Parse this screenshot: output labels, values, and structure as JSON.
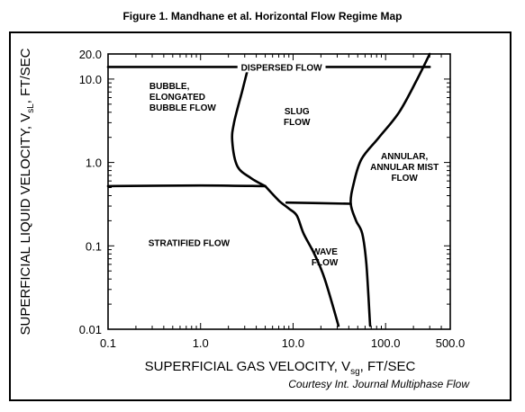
{
  "figure_title": "Figure 1. Mandhane et al. Horizontal Flow Regime Map",
  "courtesy": "Courtesy Int. Journal Multiphase Flow",
  "chart_data": {
    "type": "line",
    "title": "Figure 1. Mandhane et al. Horizontal Flow Regime Map",
    "xlabel_main": "SUPERFICIAL GAS VELOCITY, V",
    "xlabel_sub": "sg",
    "xlabel_tail": ", FT/SEC",
    "ylabel_main": "SUPERFICIAL LIQUID VELOCITY, V",
    "ylabel_sub": "sL",
    "ylabel_tail": ", FT/SEC",
    "xscale": "log",
    "yscale": "log",
    "xlim": [
      0.1,
      500
    ],
    "ylim": [
      0.01,
      20
    ],
    "x_ticks": [
      {
        "value": 0.1,
        "label": "0.1"
      },
      {
        "value": 1,
        "label": "1.0"
      },
      {
        "value": 10,
        "label": "10.0"
      },
      {
        "value": 100,
        "label": "100.0"
      },
      {
        "value": 500,
        "label": "500.0"
      }
    ],
    "y_ticks": [
      {
        "value": 0.01,
        "label": "0.01"
      },
      {
        "value": 0.1,
        "label": "0.1"
      },
      {
        "value": 1,
        "label": "1.0"
      },
      {
        "value": 10,
        "label": "10.0"
      },
      {
        "value": 20,
        "label": "20.0"
      }
    ],
    "boundaries": [
      {
        "points": [
          [
            0.1,
            14
          ],
          [
            300,
            14
          ]
        ]
      },
      {
        "points": [
          [
            3.2,
            12.5
          ],
          [
            2.8,
            7
          ],
          [
            2.3,
            3.0
          ],
          [
            2.2,
            1.8
          ],
          [
            2.5,
            0.9
          ],
          [
            3.5,
            0.65
          ],
          [
            5,
            0.52
          ]
        ]
      },
      {
        "points": [
          [
            0.1,
            0.52
          ],
          [
            1,
            0.53
          ],
          [
            5,
            0.52
          ]
        ]
      },
      {
        "points": [
          [
            5,
            0.52
          ],
          [
            7,
            0.35
          ],
          [
            9,
            0.28
          ],
          [
            11,
            0.23
          ],
          [
            13,
            0.14
          ],
          [
            17,
            0.08
          ],
          [
            22,
            0.04
          ],
          [
            31,
            0.011
          ]
        ]
      },
      {
        "points": [
          [
            8.5,
            0.33
          ],
          [
            42,
            0.32
          ]
        ]
      },
      {
        "points": [
          [
            300,
            20
          ],
          [
            220,
            10
          ],
          [
            140,
            4
          ],
          [
            85,
            2.0
          ],
          [
            55,
            1.1
          ],
          [
            45,
            0.55
          ],
          [
            42,
            0.32
          ],
          [
            48,
            0.2
          ],
          [
            56,
            0.14
          ],
          [
            62,
            0.06
          ],
          [
            68,
            0.011
          ]
        ]
      }
    ],
    "regions": [
      {
        "lines": [
          "DISPERSED FLOW"
        ],
        "x": 7.5,
        "y": 14
      },
      {
        "lines": [
          "BUBBLE,",
          "ELONGATED",
          "BUBBLE FLOW"
        ],
        "x": 0.27,
        "y": 6.2
      },
      {
        "lines": [
          "SLUG",
          "FLOW"
        ],
        "x": 11,
        "y": 3.6
      },
      {
        "lines": [
          "ANNULAR,",
          "ANNULAR MIST",
          "FLOW"
        ],
        "x": 160,
        "y": 0.9
      },
      {
        "lines": [
          "STRATIFIED FLOW"
        ],
        "x": 0.75,
        "y": 0.11
      },
      {
        "lines": [
          "WAVE",
          "FLOW"
        ],
        "x": 22,
        "y": 0.075
      }
    ]
  }
}
